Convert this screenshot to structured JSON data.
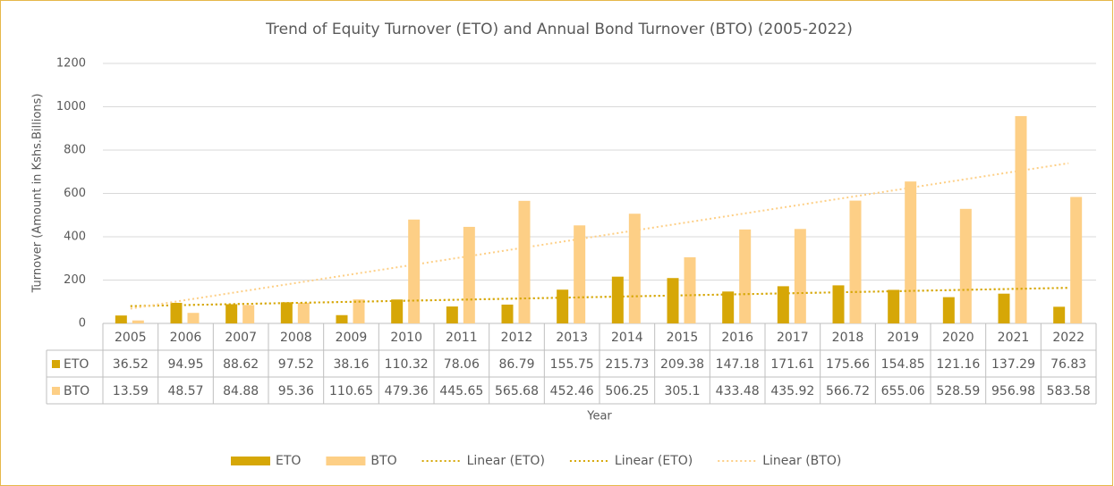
{
  "chart_data": {
    "type": "bar",
    "title": "Trend of Equity Turnover (ETO) and Annual Bond Turnover (BTO) (2005-2022)",
    "y_axis_label": "Turnover (Amount in Kshs.Billions)",
    "x_axis_label": "Year",
    "categories": [
      "2005",
      "2006",
      "2007",
      "2008",
      "2009",
      "2010",
      "2011",
      "2012",
      "2013",
      "2014",
      "2015",
      "2016",
      "2017",
      "2018",
      "2019",
      "2020",
      "2021",
      "2022"
    ],
    "series": [
      {
        "name": "ETO",
        "color": "#d6a707",
        "values": [
          36.52,
          94.95,
          88.62,
          97.52,
          38.16,
          110.32,
          78.06,
          86.79,
          155.75,
          215.73,
          209.38,
          147.18,
          171.61,
          175.66,
          154.85,
          121.16,
          137.29,
          76.83
        ]
      },
      {
        "name": "BTO",
        "color": "#fdcf86",
        "values": [
          13.59,
          48.57,
          84.88,
          95.36,
          110.65,
          479.36,
          445.65,
          565.68,
          452.46,
          506.25,
          305.1,
          433.48,
          435.92,
          566.72,
          655.06,
          528.59,
          956.98,
          583.58
        ]
      }
    ],
    "trendlines": [
      {
        "name": "Linear (ETO)",
        "series": 0,
        "color": "#d6a707"
      },
      {
        "name": "Linear (ETO)",
        "series": 0,
        "color": "#d6a707"
      },
      {
        "name": "Linear (BTO)",
        "series": 1,
        "color": "#fdcf86"
      }
    ],
    "ylim": [
      0,
      1200
    ],
    "yticks": [
      0,
      200,
      400,
      600,
      800,
      1000,
      1200
    ],
    "grid": true,
    "legend": "bottom"
  }
}
